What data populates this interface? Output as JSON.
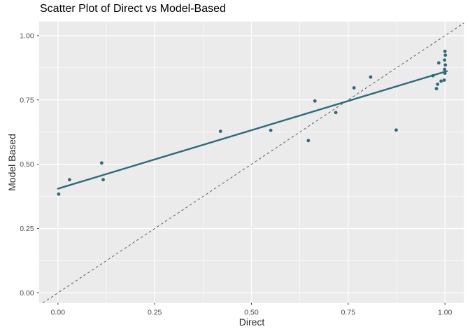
{
  "chart_data": {
    "type": "scatter",
    "title": "Scatter Plot of Direct vs Model-Based",
    "x_axis": {
      "label": "Direct",
      "tick_values": [
        0,
        0.25,
        0.5,
        0.75,
        1.0
      ],
      "tick_labels": [
        "0.00",
        "0.25",
        "0.50",
        "0.75",
        "1.00"
      ],
      "minor_tick_values": [
        0.125,
        0.375,
        0.625,
        0.875
      ],
      "range": [
        -0.049,
        1.049
      ]
    },
    "y_axis": {
      "label": "Model Based",
      "tick_values": [
        0,
        0.25,
        0.5,
        0.75,
        1.0
      ],
      "tick_labels": [
        "0.00",
        "0.25",
        "0.50",
        "0.75",
        "1.00"
      ],
      "minor_tick_values": [
        0.125,
        0.375,
        0.625,
        0.875
      ],
      "range": [
        -0.039,
        1.055
      ]
    },
    "grid": "major-and-minor",
    "legend_position": "none",
    "points": [
      [
        0.002,
        0.384
      ],
      [
        0.03,
        0.44
      ],
      [
        0.113,
        0.505
      ],
      [
        0.117,
        0.44
      ],
      [
        0.42,
        0.628
      ],
      [
        0.55,
        0.632
      ],
      [
        0.647,
        0.592
      ],
      [
        0.664,
        0.746
      ],
      [
        0.718,
        0.701
      ],
      [
        0.765,
        0.797
      ],
      [
        0.808,
        0.839
      ],
      [
        0.874,
        0.633
      ],
      [
        0.969,
        0.844
      ],
      [
        0.978,
        0.794
      ],
      [
        0.981,
        0.811
      ],
      [
        0.984,
        0.894
      ],
      [
        0.99,
        0.823
      ],
      [
        0.998,
        0.827
      ],
      [
        0.999,
        0.869
      ],
      [
        0.999,
        0.905
      ],
      [
        1.0,
        0.854
      ],
      [
        1.0,
        0.939
      ],
      [
        1.001,
        0.886
      ],
      [
        1.001,
        0.924
      ]
    ],
    "trend_line": {
      "x1": 0.0,
      "y1": 0.405,
      "x2": 1.005,
      "y2": 0.862
    },
    "identity_line": {
      "slope": 1,
      "intercept": 0,
      "style": "dashed"
    },
    "colors": {
      "point": "#2e6a79",
      "trend_line": "#2e6a79",
      "identity_line": "#5a5a5a",
      "panel_background": "#ebebeb",
      "gridline": "#ffffff",
      "tick_mark": "#333333",
      "tick_text": "#4d4d4d",
      "axis_title_text": "#2b2b2b",
      "title_text": "#000000"
    }
  }
}
